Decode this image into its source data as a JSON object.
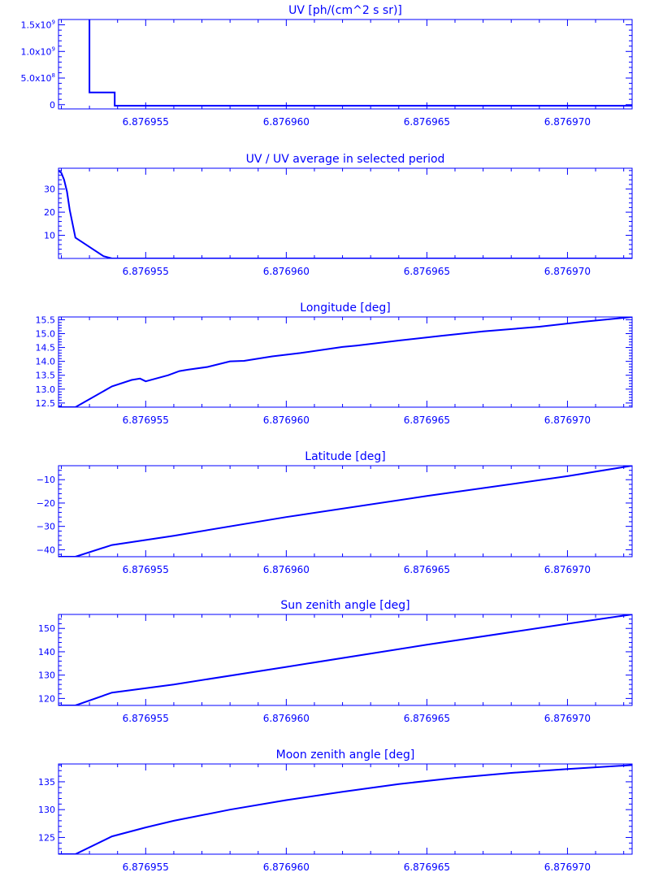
{
  "colors": {
    "ink": "#0000ff",
    "background": "#ffffff"
  },
  "chart_data": [
    {
      "type": "line",
      "title": "UV [ph/(cm^2 s sr)]",
      "xlabel": "",
      "ylabel": "",
      "xlim": [
        6.8769519,
        6.8769723
      ],
      "ylim": [
        -80000000,
        1600000000
      ],
      "xticks": [
        6.876955,
        6.87696,
        6.876965,
        6.87697
      ],
      "xtick_labels": [
        "6.876955",
        "6.876960",
        "6.876965",
        "6.876970"
      ],
      "yticks": [
        0,
        500000000,
        1000000000,
        1500000000
      ],
      "ytick_labels": [
        {
          "mant": "0",
          "exp": ""
        },
        {
          "mant": "5.0x10",
          "exp": "8"
        },
        {
          "mant": "1.0x10",
          "exp": "9"
        },
        {
          "mant": "1.5x10",
          "exp": "9"
        }
      ],
      "series": [
        {
          "x": [
            6.876953,
            6.876953,
            6.8769539,
            6.8769539,
            6.876955,
            6.8769723
          ],
          "y": [
            1600000000,
            230000000,
            230000000,
            -20000000,
            -20000000,
            -20000000
          ]
        }
      ],
      "grid": false
    },
    {
      "type": "line",
      "title": "UV / UV average in selected period",
      "xlabel": "",
      "ylabel": "",
      "xlim": [
        6.8769519,
        6.8769723
      ],
      "ylim": [
        0,
        39
      ],
      "xticks": [
        6.876955,
        6.87696,
        6.876965,
        6.87697
      ],
      "xtick_labels": [
        "6.876955",
        "6.876960",
        "6.876965",
        "6.876970"
      ],
      "yticks": [
        10,
        20,
        30
      ],
      "ytick_labels": [
        {
          "mant": "10",
          "exp": ""
        },
        {
          "mant": "20",
          "exp": ""
        },
        {
          "mant": "30",
          "exp": ""
        }
      ],
      "series": [
        {
          "x": [
            6.8769519,
            6.876952,
            6.8769521,
            6.8769522,
            6.8769523,
            6.8769525,
            6.8769535,
            6.8769538,
            6.8769723
          ],
          "y": [
            38,
            37,
            34,
            29,
            21,
            9,
            1,
            0,
            0
          ]
        }
      ],
      "grid": false
    },
    {
      "type": "line",
      "title": "Longitude [deg]",
      "xlabel": "",
      "ylabel": "",
      "xlim": [
        6.8769519,
        6.8769723
      ],
      "ylim": [
        12.35,
        15.6
      ],
      "xticks": [
        6.876955,
        6.87696,
        6.876965,
        6.87697
      ],
      "xtick_labels": [
        "6.876955",
        "6.876960",
        "6.876965",
        "6.876970"
      ],
      "yticks": [
        12.5,
        13.0,
        13.5,
        14.0,
        14.5,
        15.0,
        15.5
      ],
      "ytick_labels": [
        {
          "mant": "12.5",
          "exp": ""
        },
        {
          "mant": "13.0",
          "exp": ""
        },
        {
          "mant": "13.5",
          "exp": ""
        },
        {
          "mant": "14.0",
          "exp": ""
        },
        {
          "mant": "14.5",
          "exp": ""
        },
        {
          "mant": "15.0",
          "exp": ""
        },
        {
          "mant": "15.5",
          "exp": ""
        }
      ],
      "series": [
        {
          "x": [
            6.8769519,
            6.8769525,
            6.8769538,
            6.8769545,
            6.8769548,
            6.876955,
            6.8769558,
            6.8769562,
            6.8769565,
            6.8769572,
            6.876958,
            6.8769585,
            6.8769595,
            6.8769605,
            6.876962,
            6.8769625,
            6.876964,
            6.8769655,
            6.876967,
            6.876969,
            6.8769705,
            6.8769723
          ],
          "y": [
            12.35,
            12.35,
            13.1,
            13.33,
            13.38,
            13.28,
            13.5,
            13.65,
            13.7,
            13.8,
            14.0,
            14.02,
            14.18,
            14.3,
            14.52,
            14.57,
            14.75,
            14.92,
            15.08,
            15.25,
            15.42,
            15.6
          ]
        }
      ],
      "grid": false
    },
    {
      "type": "line",
      "title": "Latitude [deg]",
      "xlabel": "",
      "ylabel": "",
      "xlim": [
        6.8769519,
        6.8769723
      ],
      "ylim": [
        -43,
        -4
      ],
      "xticks": [
        6.876955,
        6.87696,
        6.876965,
        6.87697
      ],
      "xtick_labels": [
        "6.876955",
        "6.876960",
        "6.876965",
        "6.876970"
      ],
      "yticks": [
        -40,
        -30,
        -20,
        -10
      ],
      "ytick_labels": [
        {
          "mant": "−40",
          "exp": ""
        },
        {
          "mant": "−30",
          "exp": ""
        },
        {
          "mant": "−20",
          "exp": ""
        },
        {
          "mant": "−10",
          "exp": ""
        }
      ],
      "series": [
        {
          "x": [
            6.8769519,
            6.8769525,
            6.8769538,
            6.876956,
            6.87696,
            6.876965,
            6.87697,
            6.8769723
          ],
          "y": [
            -43,
            -43,
            -38,
            -34,
            -26,
            -17,
            -8.5,
            -4
          ]
        }
      ],
      "grid": false
    },
    {
      "type": "line",
      "title": "Sun zenith angle [deg]",
      "xlabel": "",
      "ylabel": "",
      "xlim": [
        6.8769519,
        6.8769723
      ],
      "ylim": [
        117,
        156
      ],
      "xticks": [
        6.876955,
        6.87696,
        6.876965,
        6.87697
      ],
      "xtick_labels": [
        "6.876955",
        "6.876960",
        "6.876965",
        "6.876970"
      ],
      "yticks": [
        120,
        130,
        140,
        150
      ],
      "ytick_labels": [
        {
          "mant": "120",
          "exp": ""
        },
        {
          "mant": "130",
          "exp": ""
        },
        {
          "mant": "140",
          "exp": ""
        },
        {
          "mant": "150",
          "exp": ""
        }
      ],
      "series": [
        {
          "x": [
            6.8769519,
            6.8769525,
            6.8769538,
            6.876956,
            6.87696,
            6.876965,
            6.87697,
            6.8769723
          ],
          "y": [
            117,
            117,
            122.5,
            126,
            133.5,
            143,
            152,
            156
          ]
        }
      ],
      "grid": false
    },
    {
      "type": "line",
      "title": "Moon zenith angle [deg]",
      "xlabel": "",
      "ylabel": "",
      "xlim": [
        6.8769519,
        6.8769723
      ],
      "ylim": [
        122,
        138.2
      ],
      "xticks": [
        6.876955,
        6.87696,
        6.876965,
        6.87697
      ],
      "xtick_labels": [
        "6.876955",
        "6.876960",
        "6.876965",
        "6.876970"
      ],
      "yticks": [
        125,
        130,
        135
      ],
      "ytick_labels": [
        {
          "mant": "125",
          "exp": ""
        },
        {
          "mant": "130",
          "exp": ""
        },
        {
          "mant": "135",
          "exp": ""
        }
      ],
      "series": [
        {
          "x": [
            6.8769519,
            6.8769525,
            6.8769538,
            6.876955,
            6.876956,
            6.876958,
            6.87696,
            6.876962,
            6.876964,
            6.876966,
            6.876968,
            6.87697,
            6.8769723
          ],
          "y": [
            122,
            122,
            125.2,
            126.8,
            128.0,
            130.0,
            131.7,
            133.2,
            134.6,
            135.7,
            136.6,
            137.3,
            138.0
          ]
        }
      ],
      "grid": false
    }
  ]
}
